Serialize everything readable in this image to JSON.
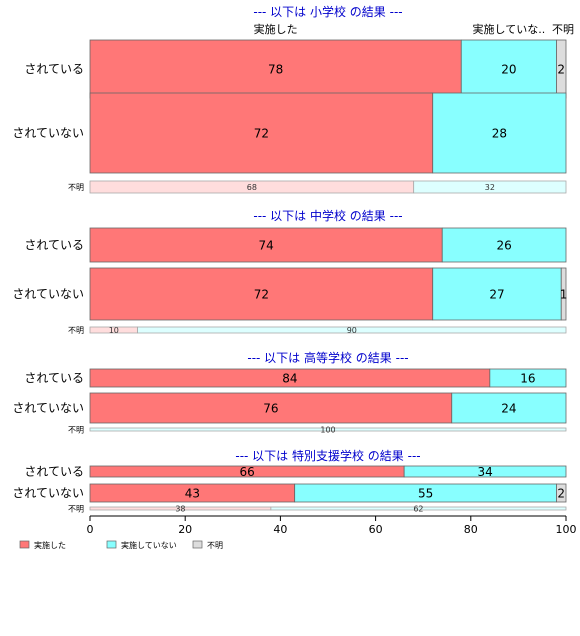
{
  "chart_data": {
    "type": "bar",
    "orientation": "horizontal",
    "stacked": "percent",
    "categories": [
      "実施した",
      "実施していない",
      "不明"
    ],
    "colors": {
      "normal": [
        "#ff7777",
        "#88ffff",
        "#dddddd"
      ],
      "faint": [
        "#ffdddd",
        "#ddffff",
        "#eeeeee"
      ]
    },
    "top_category_labels": [
      "実施した",
      "実施していな..",
      "不明"
    ],
    "xlim": [
      0,
      100
    ],
    "xticks": [
      0,
      20,
      40,
      60,
      80,
      100
    ],
    "legend": {
      "position": "bottom-left",
      "labels": [
        "実施した",
        "実施していない",
        "不明"
      ]
    },
    "panels": [
      {
        "title": "--- 以下は 小学校 の結果 ---",
        "rows": [
          {
            "label": "されている",
            "values": [
              78,
              20,
              2
            ],
            "labels": [
              "78",
              "20",
              "2"
            ],
            "weight": 58,
            "style": "normal"
          },
          {
            "label": "されていない",
            "values": [
              72,
              28,
              0
            ],
            "labels": [
              "72",
              "28",
              ""
            ],
            "weight": 80,
            "style": "normal"
          },
          {
            "label": "不明",
            "values": [
              68,
              32,
              0
            ],
            "labels": [
              "68",
              "32",
              ""
            ],
            "weight": 12,
            "style": "faint"
          }
        ]
      },
      {
        "title": "--- 以下は 中学校 の結果 ---",
        "rows": [
          {
            "label": "されている",
            "values": [
              74,
              26,
              0
            ],
            "labels": [
              "74",
              "26",
              ""
            ],
            "weight": 34,
            "style": "normal"
          },
          {
            "label": "されていない",
            "values": [
              72,
              27,
              1
            ],
            "labels": [
              "72",
              "27",
              "1"
            ],
            "weight": 52,
            "style": "normal"
          },
          {
            "label": "不明",
            "values": [
              10,
              90,
              0
            ],
            "labels": [
              "10",
              "90",
              ""
            ],
            "weight": 6,
            "style": "faint"
          }
        ]
      },
      {
        "title": "--- 以下は 高等学校 の結果 ---",
        "rows": [
          {
            "label": "されている",
            "values": [
              84,
              16,
              0
            ],
            "labels": [
              "84",
              "16",
              ""
            ],
            "weight": 18,
            "style": "normal"
          },
          {
            "label": "されていない",
            "values": [
              76,
              24,
              0
            ],
            "labels": [
              "76",
              "24",
              ""
            ],
            "weight": 30,
            "style": "normal"
          },
          {
            "label": "不明",
            "values": [
              0,
              100,
              0
            ],
            "labels": [
              "",
              "100",
              ""
            ],
            "weight": 3,
            "style": "faint"
          }
        ]
      },
      {
        "title": "--- 以下は 特別支援学校 の結果 ---",
        "rows": [
          {
            "label": "されている",
            "values": [
              66,
              34,
              0
            ],
            "labels": [
              "66",
              "34",
              ""
            ],
            "weight": 11,
            "style": "normal"
          },
          {
            "label": "されていない",
            "values": [
              43,
              55,
              2
            ],
            "labels": [
              "43",
              "55",
              "2"
            ],
            "weight": 18,
            "style": "normal"
          },
          {
            "label": "不明",
            "values": [
              38,
              62,
              0
            ],
            "labels": [
              "38",
              "62",
              ""
            ],
            "weight": 3,
            "style": "faint"
          }
        ]
      }
    ]
  }
}
